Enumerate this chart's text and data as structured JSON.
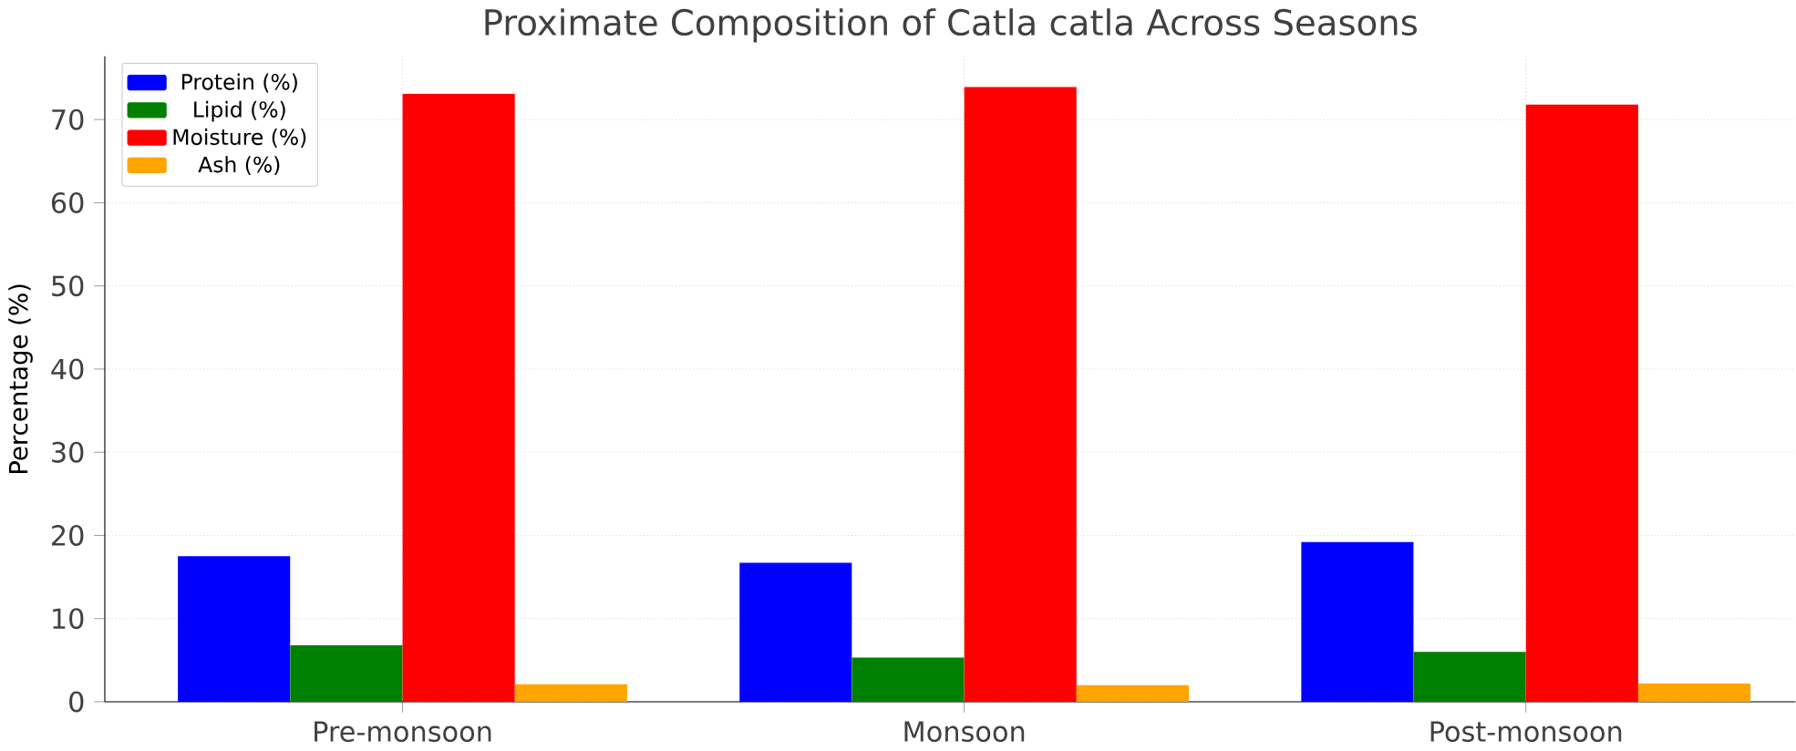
{
  "chart_data": {
    "type": "bar",
    "title": "Proximate Composition of Catla catla Across Seasons",
    "ylabel": "Percentage (%)",
    "categories": [
      "Pre-monsoon",
      "Monsoon",
      "Post-monsoon"
    ],
    "series": [
      {
        "name": "Protein (%)",
        "color": "#0000ff",
        "values": [
          17.5,
          16.7,
          19.2
        ]
      },
      {
        "name": "Lipid (%)",
        "color": "#008000",
        "values": [
          6.8,
          5.3,
          6.0
        ]
      },
      {
        "name": "Moisture (%)",
        "color": "#ff0000",
        "values": [
          73.1,
          73.9,
          71.8
        ]
      },
      {
        "name": "Ash (%)",
        "color": "#ffa500",
        "values": [
          2.1,
          2.0,
          2.2
        ]
      }
    ],
    "ylim": [
      0,
      77.6
    ],
    "yticks": [
      0,
      10,
      20,
      30,
      40,
      50,
      60,
      70
    ],
    "grid": true,
    "legend": "top left"
  }
}
